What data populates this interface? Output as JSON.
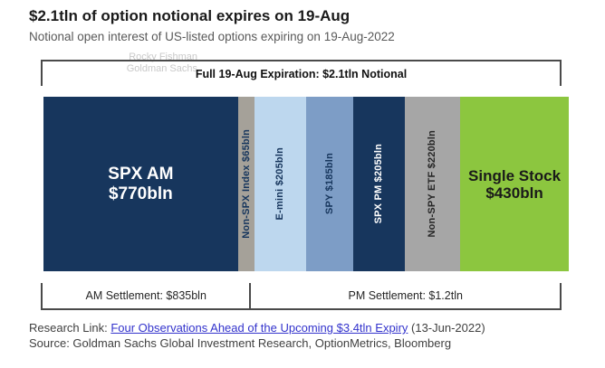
{
  "header": {
    "title": "$2.1tln of option notional expires on 19-Aug",
    "subtitle": "Notional open interest of US-listed options expiring on 19-Aug-2022"
  },
  "watermark": {
    "line1": "Rocky Fishman",
    "line2": "Goldman Sachs"
  },
  "chart_data": {
    "type": "bar",
    "variant": "horizontal-proportional-stacked",
    "title": "Full 19-Aug Expiration: $2.1tln Notional",
    "unit": "bln USD notional",
    "segments": [
      {
        "id": "spx-am",
        "name": "SPX AM",
        "label_lines": [
          "SPX AM",
          "$770bln"
        ],
        "value": 770,
        "color": "#17365d",
        "text_color": "#ffffff",
        "orientation": "horizontal"
      },
      {
        "id": "non-spx-index",
        "name": "Non-SPX Index",
        "label_lines": [
          "Non-SPX Index $65bln"
        ],
        "value": 65,
        "color": "#a5a199",
        "text_color": "#17365d",
        "orientation": "vertical"
      },
      {
        "id": "e-mini",
        "name": "E-mini",
        "label_lines": [
          "E-mini $205bln"
        ],
        "value": 205,
        "color": "#bdd7ee",
        "text_color": "#17365d",
        "orientation": "vertical"
      },
      {
        "id": "spy",
        "name": "SPY",
        "label_lines": [
          "SPY $185bln"
        ],
        "value": 185,
        "color": "#7d9dc6",
        "text_color": "#17365d",
        "orientation": "vertical"
      },
      {
        "id": "spx-pm",
        "name": "SPX PM",
        "label_lines": [
          "SPX PM $205bln"
        ],
        "value": 205,
        "color": "#17365d",
        "text_color": "#ffffff",
        "orientation": "vertical"
      },
      {
        "id": "non-spy-etf",
        "name": "Non-SPY ETF",
        "label_lines": [
          "Non-SPY ETF $220bln"
        ],
        "value": 220,
        "color": "#a6a6a6",
        "text_color": "#262626",
        "orientation": "vertical"
      },
      {
        "id": "single-stock",
        "name": "Single Stock",
        "label_lines": [
          "Single Stock",
          "$430bln"
        ],
        "value": 430,
        "color": "#8cc63f",
        "text_color": "#1a1a1a",
        "orientation": "horizontal"
      }
    ],
    "settlement_groups": [
      {
        "label": "AM Settlement: $835bln",
        "value": 835
      },
      {
        "label": "PM Settlement: $1.2tln",
        "value": 1245
      }
    ]
  },
  "footer": {
    "research_prefix": "Research Link: ",
    "research_link": "Four Observations Ahead of the Upcoming $3.4tln Expiry",
    "research_suffix": " (13-Jun-2022)",
    "source": "Source: Goldman Sachs Global Investment Research, OptionMetrics, Bloomberg",
    "link_color": "#3333cc"
  }
}
